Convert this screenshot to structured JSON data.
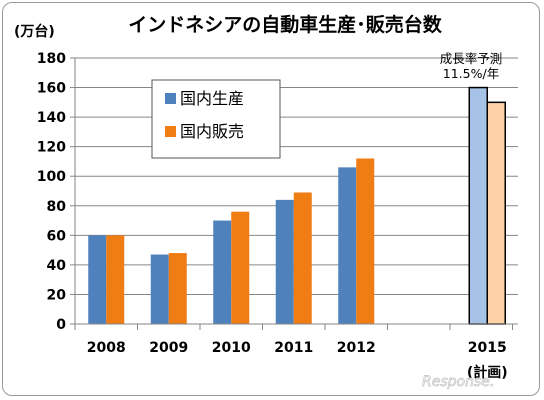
{
  "chart_data": {
    "type": "bar",
    "title": "インドネシアの自動車生産･販売台数",
    "unit_label": "(万台)",
    "categories": [
      "2008",
      "2009",
      "2010",
      "2011",
      "2012",
      "2015"
    ],
    "category_sublabels": [
      "",
      "",
      "",
      "",
      "",
      "(計画)"
    ],
    "series": [
      {
        "name": "国内生産",
        "values": [
          60,
          47,
          70,
          84,
          106,
          160
        ]
      },
      {
        "name": "国内販売",
        "values": [
          60,
          48,
          76,
          89,
          112,
          150
        ]
      }
    ],
    "ylim": [
      0,
      180
    ],
    "yticks": [
      0,
      20,
      40,
      60,
      80,
      100,
      120,
      140,
      160,
      180
    ],
    "grid": true,
    "legend_position": "top-left",
    "note": {
      "line1": "成長率予測",
      "line2": "11.5%/年"
    },
    "watermark": "Response.",
    "colors": {
      "production": "#4f81bd",
      "sales": "#f07c14",
      "production_plan": "#a6c2e6",
      "sales_plan": "#fcd2a6",
      "plan_outline": "#000000",
      "grid": "#868686"
    }
  }
}
